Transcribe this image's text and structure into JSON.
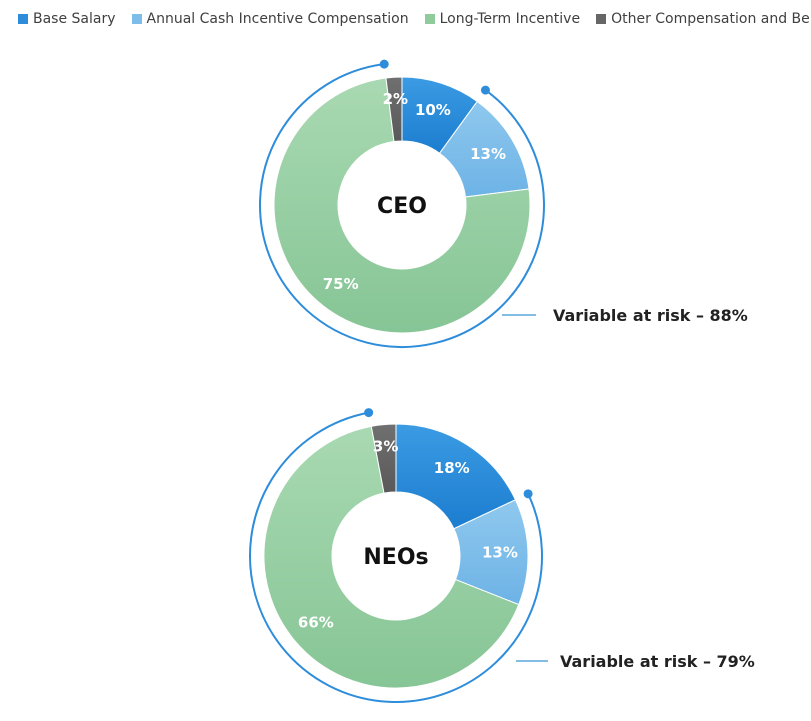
{
  "chart_data": {
    "type": "pie",
    "categories": [
      "Base Salary",
      "Annual Cash Incentive Compensation",
      "Long-Term Incentive",
      "Other Compensation and Benefits"
    ],
    "colors": [
      "#2e8ddb",
      "#7dbdea",
      "#8fcb9b",
      "#666666"
    ],
    "charts": [
      {
        "center_label": "CEO",
        "values": [
          10,
          13,
          75,
          2
        ],
        "labels": [
          "10%",
          "13%",
          "75%",
          "2%"
        ],
        "annotation": "Variable at risk – 88%"
      },
      {
        "center_label": "NEOs",
        "values": [
          18,
          13,
          66,
          3
        ],
        "labels": [
          "18%",
          "13%",
          "66%",
          "3%"
        ],
        "annotation": "Variable at risk – 79%"
      }
    ],
    "accent_color": "#2e8ddb",
    "annotation_line_color": "#5aa7dc",
    "legend_position": "top"
  }
}
